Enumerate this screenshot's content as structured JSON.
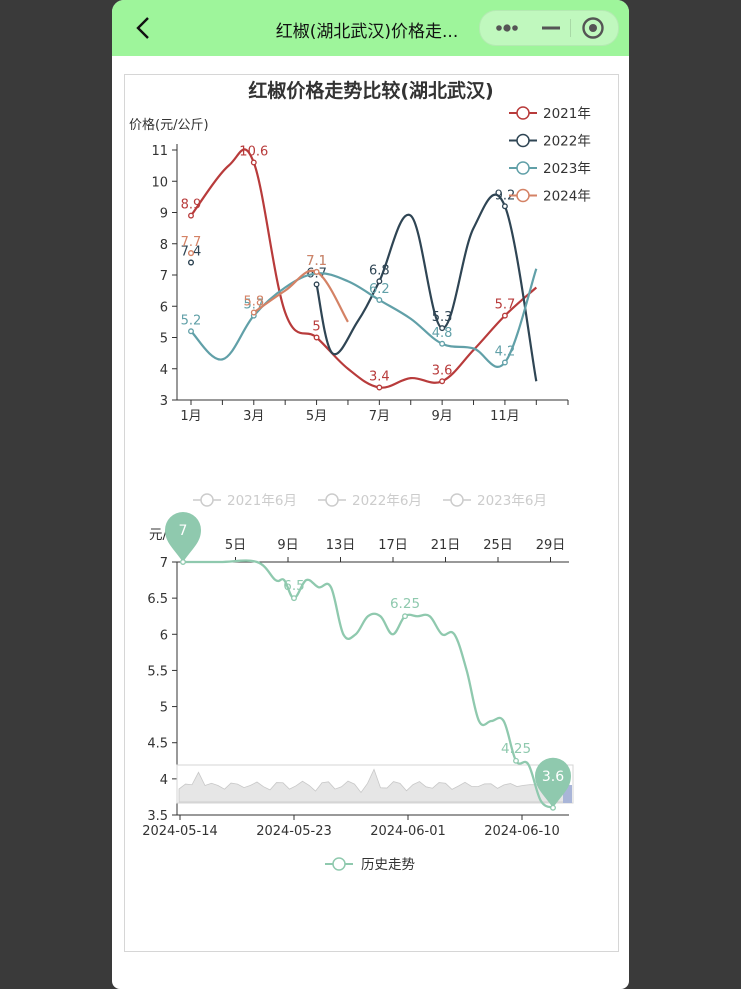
{
  "navbar": {
    "title": "红椒(湖北武汉)价格走...",
    "back_icon": "chevron-left-icon",
    "more_icon": "more-dots-icon",
    "minimize_icon": "minimize-icon",
    "close_icon": "target-close-icon"
  },
  "colors": {
    "navbar_bg": "#9ef59b",
    "y2021": "#b83b3b",
    "y2022": "#2f4554",
    "y2023": "#61a0a8",
    "y2024": "#d48265",
    "history": "#8fc9ae"
  },
  "chart_data": [
    {
      "type": "line",
      "title": "红椒价格走势比较(湖北武汉)",
      "ylabel": "价格(元/公斤)",
      "ylim": [
        3,
        11
      ],
      "yticks": [
        "3",
        "4",
        "5",
        "6",
        "7",
        "8",
        "9",
        "10",
        "11"
      ],
      "x_tick_labels": [
        "1月",
        "3月",
        "5月",
        "7月",
        "9月",
        "11月"
      ],
      "legend_position": "top-right",
      "series": [
        {
          "name": "2021年",
          "points": [
            [
              1,
              8.9
            ],
            [
              2.2,
              10.5
            ],
            [
              3,
              10.6
            ],
            [
              4,
              5.8
            ],
            [
              5,
              5
            ],
            [
              6,
              4
            ],
            [
              7,
              3.4
            ],
            [
              8,
              3.7
            ],
            [
              9,
              3.6
            ],
            [
              10,
              4.6
            ],
            [
              11,
              5.7
            ],
            [
              12,
              6.6
            ]
          ],
          "labels": [
            {
              "x": 1,
              "y": 8.9,
              "text": "8.9"
            },
            {
              "x": 3,
              "y": 10.6,
              "text": "10.6"
            },
            {
              "x": 5,
              "y": 5,
              "text": "5"
            },
            {
              "x": 7,
              "y": 3.4,
              "text": "3.4"
            },
            {
              "x": 9,
              "y": 3.6,
              "text": "3.6"
            },
            {
              "x": 11,
              "y": 5.7,
              "text": "5.7"
            }
          ]
        },
        {
          "name": "2022年",
          "points": [
            [
              1,
              7.4
            ]
          ],
          "segments": [
            [
              [
                5,
                6.7
              ],
              [
                5.5,
                4.5
              ],
              [
                6.3,
                5.5
              ],
              [
                7,
                6.8
              ],
              [
                8,
                8.9
              ],
              [
                9,
                5.3
              ],
              [
                10,
                8.5
              ],
              [
                11,
                9.2
              ],
              [
                12,
                3.6
              ]
            ]
          ],
          "labels": [
            {
              "x": 1,
              "y": 7.4,
              "text": "7.4"
            },
            {
              "x": 5,
              "y": 6.7,
              "text": "6.7"
            },
            {
              "x": 7,
              "y": 6.8,
              "text": "6.8"
            },
            {
              "x": 9,
              "y": 5.3,
              "text": "5.3"
            },
            {
              "x": 11,
              "y": 9.2,
              "text": "9.2"
            }
          ]
        },
        {
          "name": "2023年",
          "points": [
            [
              1,
              5.2
            ],
            [
              2,
              4.3
            ],
            [
              3,
              5.7
            ],
            [
              4,
              6.6
            ],
            [
              5,
              7.05
            ],
            [
              6,
              6.8
            ],
            [
              7,
              6.2
            ],
            [
              8,
              5.6
            ],
            [
              9,
              4.8
            ],
            [
              10,
              4.65
            ],
            [
              11,
              4.2
            ],
            [
              12,
              7.2
            ]
          ],
          "labels": [
            {
              "x": 1,
              "y": 5.2,
              "text": "5.2"
            },
            {
              "x": 3,
              "y": 5.7,
              "text": "5.7"
            },
            {
              "x": 5,
              "y": 7.1,
              "text": "7.1"
            },
            {
              "x": 7,
              "y": 6.2,
              "text": "6.2"
            },
            {
              "x": 9,
              "y": 4.8,
              "text": "4.8"
            },
            {
              "x": 11,
              "y": 4.2,
              "text": "4.2"
            }
          ]
        },
        {
          "name": "2024年",
          "points": [
            [
              1,
              7.7
            ]
          ],
          "segments": [
            [
              [
                3,
                5.8
              ],
              [
                4,
                6.5
              ],
              [
                5,
                7.1
              ],
              [
                6,
                5.5
              ]
            ]
          ],
          "labels": [
            {
              "x": 1,
              "y": 7.7,
              "text": "7.7"
            },
            {
              "x": 3,
              "y": 5.8,
              "text": "5.8"
            },
            {
              "x": 5,
              "y": 7.1,
              "text": "7.1"
            }
          ]
        }
      ]
    },
    {
      "type": "line",
      "ylabel": "元/公斤",
      "ylim": [
        3.5,
        7
      ],
      "yticks": [
        "3.5",
        "4",
        "4.5",
        "5",
        "5.5",
        "6",
        "6.5",
        "7"
      ],
      "x_top_ticks": [
        "1日",
        "5日",
        "9日",
        "13日",
        "17日",
        "21日",
        "25日",
        "29日"
      ],
      "x_bottom_ticks": [
        "2024-05-14",
        "2024-05-23",
        "2024-06-01",
        "2024-06-10"
      ],
      "legend_top": [
        "2021年6月",
        "2022年6月",
        "2023年6月"
      ],
      "legend_bottom": "历史走势",
      "series": [
        {
          "name": "历史走势",
          "points": [
            [
              0,
              7
            ],
            [
              3,
              7
            ],
            [
              6,
              7
            ],
            [
              7.5,
              6.75
            ],
            [
              8.2,
              6.75
            ],
            [
              9,
              6.5
            ],
            [
              10,
              6.75
            ],
            [
              11,
              6.65
            ],
            [
              12,
              6.65
            ],
            [
              13,
              6.0
            ],
            [
              14,
              6.0
            ],
            [
              15,
              6.25
            ],
            [
              16,
              6.25
            ],
            [
              17,
              6.0
            ],
            [
              18,
              6.25
            ],
            [
              19,
              6.25
            ],
            [
              20,
              6.25
            ],
            [
              21,
              6.0
            ],
            [
              22,
              6.0
            ],
            [
              23,
              5.5
            ],
            [
              24,
              4.8
            ],
            [
              25,
              4.8
            ],
            [
              26,
              4.8
            ],
            [
              27,
              4.25
            ],
            [
              28,
              4.2
            ],
            [
              29,
              3.7
            ],
            [
              30,
              3.6
            ]
          ],
          "labels": [
            {
              "x": 9,
              "y": 6.5,
              "text": "6.5"
            },
            {
              "x": 18,
              "y": 6.25,
              "text": "6.25"
            },
            {
              "x": 27,
              "y": 4.25,
              "text": "4.25"
            }
          ],
          "markers": [
            {
              "x": 0,
              "y": 7,
              "text": "7"
            },
            {
              "x": 30,
              "y": 3.6,
              "text": "3.6"
            }
          ]
        }
      ]
    }
  ]
}
